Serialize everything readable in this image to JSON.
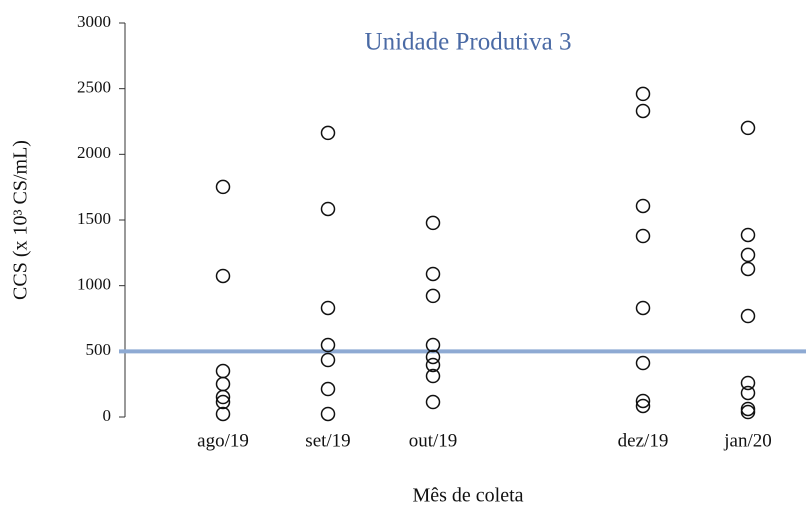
{
  "chart_data": {
    "type": "scatter",
    "title": "Unidade Produtiva 3",
    "title_color": "#4a6aa5",
    "ylabel": "CCS (x 10³ CS/mL)",
    "xlabel": "Mês de coleta",
    "categories": [
      "ago/19",
      "set/19",
      "out/19",
      null,
      "dez/19",
      "jan/20"
    ],
    "values": [
      [
        1752,
        1074,
        350,
        251,
        152,
        114,
        23
      ],
      [
        2163,
        1584,
        830,
        548,
        434,
        213,
        23
      ],
      [
        1478,
        1089,
        922,
        548,
        457,
        396,
        312,
        114
      ],
      [],
      [
        2460,
        2330,
        1607,
        1378,
        830,
        411,
        122,
        84
      ],
      [
        2201,
        1386,
        1234,
        1127,
        769,
        259,
        183,
        61,
        38
      ]
    ],
    "marker_color": "#111111",
    "reference_line": 500,
    "reference_color": "#8eaad3",
    "ylim": [
      0,
      3000
    ],
    "yticks": [
      0,
      500,
      1000,
      1500,
      2000,
      2500,
      3000
    ]
  }
}
